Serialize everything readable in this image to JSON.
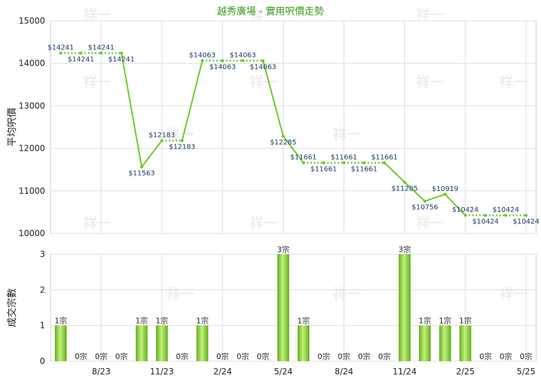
{
  "chart_data": [
    {
      "type": "line",
      "title": "越秀廣場 - 實用呎價走勢",
      "ylabel": "平均呎價",
      "ylim": [
        10000,
        15000
      ],
      "yticks": [
        "10000",
        "11000",
        "12000",
        "13000",
        "14000",
        "15000"
      ],
      "x_tick_labels": [
        "8/23",
        "11/23",
        "2/24",
        "5/24",
        "8/24",
        "11/24",
        "2/25",
        "5/25"
      ],
      "series": [
        {
          "values": [
            14241,
            14241,
            14241,
            14241,
            11563,
            12183,
            12183,
            14063,
            14063,
            14063,
            14063,
            12285,
            11661,
            11661,
            11661,
            11661,
            11661,
            11205,
            10756,
            10919,
            10424,
            10424,
            10424,
            10424
          ],
          "labels": [
            "$14241",
            "$14241",
            "$14241",
            "$14241",
            "$11563",
            "$12183",
            "$12183",
            "$14063",
            "$14063",
            "$14063",
            "$14063",
            "$12285",
            "$11661",
            "$11661",
            "$11661",
            "$11661",
            "$11661",
            "$11205",
            "$10756",
            "$10919",
            "$10424",
            "$10424",
            "$10424",
            "$10424"
          ],
          "carried": [
            false,
            true,
            true,
            true,
            false,
            false,
            true,
            false,
            true,
            true,
            true,
            false,
            false,
            true,
            true,
            true,
            true,
            false,
            false,
            false,
            false,
            true,
            true,
            true
          ]
        }
      ],
      "colors": {
        "line": "#66cc22",
        "grid": "#dddddd",
        "bar": "#7bc82a"
      }
    },
    {
      "type": "bar",
      "ylabel": "成交宗數",
      "ylim": [
        0,
        3
      ],
      "yticks": [
        "0",
        "1",
        "2",
        "3"
      ],
      "x_tick_labels": [
        "8/23",
        "11/23",
        "2/24",
        "5/24",
        "8/24",
        "11/24",
        "2/25",
        "5/25"
      ],
      "values": [
        1,
        0,
        0,
        0,
        1,
        1,
        0,
        1,
        0,
        0,
        0,
        3,
        1,
        0,
        0,
        0,
        0,
        3,
        1,
        1,
        1,
        0,
        0,
        0
      ],
      "labels": [
        "1宗",
        "0宗",
        "0宗",
        "0宗",
        "1宗",
        "1宗",
        "0宗",
        "1宗",
        "0宗",
        "0宗",
        "0宗",
        "3宗",
        "1宗",
        "0宗",
        "0宗",
        "0宗",
        "0宗",
        "3宗",
        "1宗",
        "1宗",
        "1宗",
        "0宗",
        "0宗",
        "0宗"
      ]
    }
  ],
  "watermark": "祥一"
}
